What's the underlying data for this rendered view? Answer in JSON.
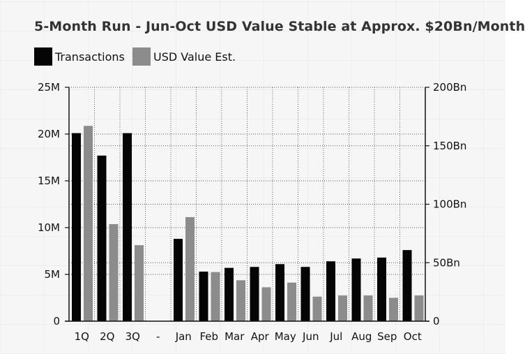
{
  "chart_data": {
    "type": "bar",
    "title": "5-Month Run - Jun-Oct USD Value Stable at Approx. $20Bn/Month",
    "categories": [
      "1Q",
      "2Q",
      "3Q",
      "-",
      "Jan",
      "Feb",
      "Mar",
      "Apr",
      "May",
      "Jun",
      "Jul",
      "Aug",
      "Sep",
      "Oct"
    ],
    "series": [
      {
        "name": "Transactions",
        "axis": "left",
        "color": "#050505",
        "values": [
          20.1,
          17.7,
          20.1,
          null,
          8.8,
          5.3,
          5.7,
          5.8,
          6.1,
          5.8,
          6.4,
          6.7,
          6.8,
          7.6
        ]
      },
      {
        "name": "USD Value Est.",
        "axis": "right",
        "color": "#8c8c8c",
        "values": [
          167,
          83,
          65,
          null,
          89,
          42,
          35,
          29,
          33,
          21,
          22,
          22,
          20,
          22
        ]
      }
    ],
    "y_left": {
      "range": [
        0,
        25
      ],
      "ticks": [
        0,
        5,
        10,
        15,
        20,
        25
      ],
      "tick_labels": [
        "0",
        "5M",
        "10M",
        "15M",
        "20M",
        "25M"
      ]
    },
    "y_right": {
      "range": [
        0,
        200
      ],
      "ticks": [
        0,
        50,
        100,
        150,
        200
      ],
      "tick_labels": [
        "0",
        "50Bn",
        "100Bn",
        "150Bn",
        "200Bn"
      ]
    },
    "xlabel": "",
    "ylabel": "",
    "grid": true,
    "grid_style": "dotted",
    "legend_position": "top-left"
  }
}
